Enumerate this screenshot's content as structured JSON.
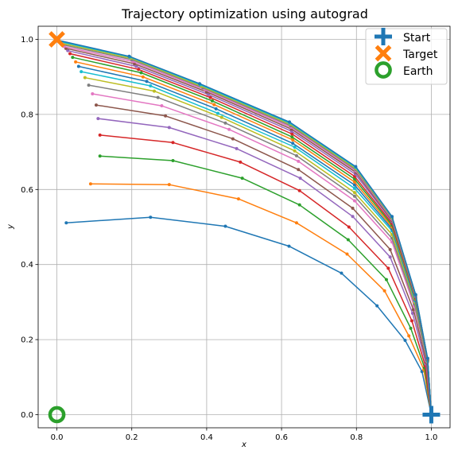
{
  "chart_data": {
    "type": "line",
    "title": "Trajectory optimization using autograd",
    "xlabel": "x",
    "ylabel": "y",
    "xlim": [
      -0.05,
      1.05
    ],
    "ylim": [
      -0.035,
      1.035
    ],
    "xticks": [
      "0.0",
      "0.2",
      "0.4",
      "0.6",
      "0.8",
      "1.0"
    ],
    "yticks": [
      "0.0",
      "0.2",
      "0.4",
      "0.6",
      "0.8",
      "1.0"
    ],
    "grid": true,
    "legend_position": "top-right",
    "colors": [
      "#1f77b4",
      "#ff7f0e",
      "#2ca02c",
      "#d62728",
      "#9467bd",
      "#8c564b",
      "#e377c2",
      "#7f7f7f",
      "#bcbd22",
      "#17becf"
    ],
    "series": [
      {
        "points": [
          [
            1.0,
            0.0
          ],
          [
            0.975,
            0.115
          ],
          [
            0.93,
            0.198
          ],
          [
            0.855,
            0.29
          ],
          [
            0.76,
            0.377
          ],
          [
            0.62,
            0.449
          ],
          [
            0.45,
            0.502
          ],
          [
            0.25,
            0.526
          ],
          [
            0.025,
            0.511
          ]
        ]
      },
      {
        "points": [
          [
            1.0,
            0.0
          ],
          [
            0.98,
            0.12
          ],
          [
            0.94,
            0.21
          ],
          [
            0.875,
            0.33
          ],
          [
            0.775,
            0.428
          ],
          [
            0.64,
            0.511
          ],
          [
            0.485,
            0.575
          ],
          [
            0.3,
            0.613
          ],
          [
            0.09,
            0.615
          ]
        ]
      },
      {
        "points": [
          [
            1.0,
            0.0
          ],
          [
            0.982,
            0.125
          ],
          [
            0.945,
            0.23
          ],
          [
            0.88,
            0.36
          ],
          [
            0.778,
            0.466
          ],
          [
            0.648,
            0.559
          ],
          [
            0.495,
            0.63
          ],
          [
            0.31,
            0.677
          ],
          [
            0.115,
            0.689
          ]
        ]
      },
      {
        "points": [
          [
            1.0,
            0.0
          ],
          [
            0.984,
            0.13
          ],
          [
            0.948,
            0.25
          ],
          [
            0.885,
            0.39
          ],
          [
            0.78,
            0.5
          ],
          [
            0.648,
            0.597
          ],
          [
            0.49,
            0.673
          ],
          [
            0.31,
            0.725
          ],
          [
            0.115,
            0.745
          ]
        ]
      },
      {
        "points": [
          [
            1.0,
            0.0
          ],
          [
            0.986,
            0.135
          ],
          [
            0.95,
            0.27
          ],
          [
            0.89,
            0.42
          ],
          [
            0.79,
            0.528
          ],
          [
            0.65,
            0.63
          ],
          [
            0.48,
            0.709
          ],
          [
            0.3,
            0.765
          ],
          [
            0.11,
            0.789
          ]
        ]
      },
      {
        "points": [
          [
            1.0,
            0.0
          ],
          [
            0.988,
            0.138
          ],
          [
            0.952,
            0.28
          ],
          [
            0.89,
            0.44
          ],
          [
            0.79,
            0.55
          ],
          [
            0.645,
            0.653
          ],
          [
            0.47,
            0.735
          ],
          [
            0.29,
            0.796
          ],
          [
            0.105,
            0.825
          ]
        ]
      },
      {
        "points": [
          [
            1.0,
            0.0
          ],
          [
            0.99,
            0.14
          ],
          [
            0.954,
            0.29
          ],
          [
            0.895,
            0.46
          ],
          [
            0.795,
            0.57
          ],
          [
            0.645,
            0.675
          ],
          [
            0.46,
            0.76
          ],
          [
            0.28,
            0.823
          ],
          [
            0.095,
            0.855
          ]
        ]
      },
      {
        "points": [
          [
            1.0,
            0.0
          ],
          [
            0.99,
            0.142
          ],
          [
            0.955,
            0.295
          ],
          [
            0.895,
            0.47
          ],
          [
            0.795,
            0.582
          ],
          [
            0.64,
            0.69
          ],
          [
            0.45,
            0.777
          ],
          [
            0.27,
            0.845
          ],
          [
            0.085,
            0.878
          ]
        ]
      },
      {
        "points": [
          [
            1.0,
            0.0
          ],
          [
            0.99,
            0.143
          ],
          [
            0.956,
            0.3
          ],
          [
            0.895,
            0.48
          ],
          [
            0.795,
            0.592
          ],
          [
            0.635,
            0.703
          ],
          [
            0.44,
            0.792
          ],
          [
            0.26,
            0.862
          ],
          [
            0.075,
            0.898
          ]
        ]
      },
      {
        "points": [
          [
            1.0,
            0.0
          ],
          [
            0.99,
            0.144
          ],
          [
            0.957,
            0.303
          ],
          [
            0.895,
            0.49
          ],
          [
            0.795,
            0.603
          ],
          [
            0.635,
            0.713
          ],
          [
            0.43,
            0.803
          ],
          [
            0.25,
            0.876
          ],
          [
            0.065,
            0.914
          ]
        ]
      },
      {
        "points": [
          [
            1.0,
            0.0
          ],
          [
            0.99,
            0.145
          ],
          [
            0.957,
            0.306
          ],
          [
            0.895,
            0.495
          ],
          [
            0.795,
            0.612
          ],
          [
            0.63,
            0.723
          ],
          [
            0.425,
            0.815
          ],
          [
            0.24,
            0.888
          ],
          [
            0.058,
            0.928
          ]
        ]
      },
      {
        "points": [
          [
            1.0,
            0.0
          ],
          [
            0.99,
            0.146
          ],
          [
            0.958,
            0.308
          ],
          [
            0.895,
            0.5
          ],
          [
            0.795,
            0.62
          ],
          [
            0.63,
            0.732
          ],
          [
            0.42,
            0.826
          ],
          [
            0.23,
            0.9
          ],
          [
            0.05,
            0.94
          ]
        ]
      },
      {
        "points": [
          [
            1.0,
            0.0
          ],
          [
            0.99,
            0.147
          ],
          [
            0.958,
            0.31
          ],
          [
            0.895,
            0.505
          ],
          [
            0.795,
            0.628
          ],
          [
            0.628,
            0.74
          ],
          [
            0.415,
            0.836
          ],
          [
            0.225,
            0.911
          ],
          [
            0.042,
            0.952
          ]
        ]
      },
      {
        "points": [
          [
            1.0,
            0.0
          ],
          [
            0.99,
            0.148
          ],
          [
            0.958,
            0.312
          ],
          [
            0.895,
            0.51
          ],
          [
            0.795,
            0.635
          ],
          [
            0.628,
            0.748
          ],
          [
            0.41,
            0.845
          ],
          [
            0.218,
            0.92
          ],
          [
            0.035,
            0.962
          ]
        ]
      },
      {
        "points": [
          [
            1.0,
            0.0
          ],
          [
            0.99,
            0.148
          ],
          [
            0.958,
            0.314
          ],
          [
            0.895,
            0.515
          ],
          [
            0.797,
            0.641
          ],
          [
            0.627,
            0.755
          ],
          [
            0.405,
            0.853
          ],
          [
            0.212,
            0.928
          ],
          [
            0.029,
            0.97
          ]
        ]
      },
      {
        "points": [
          [
            1.0,
            0.0
          ],
          [
            0.99,
            0.149
          ],
          [
            0.958,
            0.316
          ],
          [
            0.895,
            0.518
          ],
          [
            0.798,
            0.646
          ],
          [
            0.626,
            0.761
          ],
          [
            0.4,
            0.86
          ],
          [
            0.207,
            0.935
          ],
          [
            0.024,
            0.976
          ]
        ]
      },
      {
        "points": [
          [
            1.0,
            0.0
          ],
          [
            0.99,
            0.149
          ],
          [
            0.958,
            0.317
          ],
          [
            0.895,
            0.521
          ],
          [
            0.798,
            0.65
          ],
          [
            0.625,
            0.766
          ],
          [
            0.395,
            0.866
          ],
          [
            0.203,
            0.941
          ],
          [
            0.019,
            0.981
          ]
        ]
      },
      {
        "points": [
          [
            1.0,
            0.0
          ],
          [
            0.99,
            0.15
          ],
          [
            0.958,
            0.318
          ],
          [
            0.895,
            0.523
          ],
          [
            0.798,
            0.653
          ],
          [
            0.624,
            0.77
          ],
          [
            0.39,
            0.871
          ],
          [
            0.2,
            0.946
          ],
          [
            0.015,
            0.986
          ]
        ]
      },
      {
        "points": [
          [
            1.0,
            0.0
          ],
          [
            0.99,
            0.15
          ],
          [
            0.958,
            0.319
          ],
          [
            0.895,
            0.525
          ],
          [
            0.798,
            0.656
          ],
          [
            0.623,
            0.774
          ],
          [
            0.386,
            0.875
          ],
          [
            0.197,
            0.95
          ],
          [
            0.011,
            0.99
          ]
        ]
      },
      {
        "points": [
          [
            1.0,
            0.0
          ],
          [
            0.99,
            0.15
          ],
          [
            0.958,
            0.32
          ],
          [
            0.895,
            0.527
          ],
          [
            0.798,
            0.659
          ],
          [
            0.622,
            0.777
          ],
          [
            0.383,
            0.879
          ],
          [
            0.195,
            0.953
          ],
          [
            0.008,
            0.994
          ]
        ]
      },
      {
        "points": [
          [
            1.0,
            0.0
          ],
          [
            0.99,
            0.15
          ],
          [
            0.958,
            0.32
          ],
          [
            0.895,
            0.528
          ],
          [
            0.798,
            0.661
          ],
          [
            0.621,
            0.78
          ],
          [
            0.381,
            0.882
          ],
          [
            0.193,
            0.955
          ],
          [
            0.005,
            0.997
          ]
        ]
      }
    ],
    "markers": [
      {
        "name": "Start",
        "x": 1.0,
        "y": 0.0,
        "shape": "plus",
        "color": "#1f77b4"
      },
      {
        "name": "Target",
        "x": 0.0,
        "y": 1.0,
        "shape": "x",
        "color": "#ff7f0e"
      },
      {
        "name": "Earth",
        "x": 0.0,
        "y": 0.0,
        "shape": "circle",
        "color": "#2ca02c"
      }
    ],
    "legend": [
      "Start",
      "Target",
      "Earth"
    ]
  }
}
